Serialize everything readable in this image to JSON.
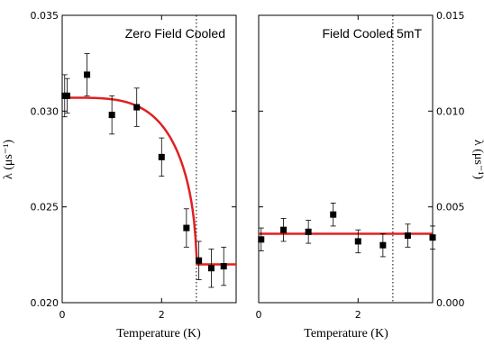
{
  "chart_data": [
    {
      "type": "scatter",
      "title": "Zero Field Cooled",
      "xlabel": "Temperature (K)",
      "ylabel": "λ (μs⁻¹)",
      "xlim": [
        0,
        3.5
      ],
      "ylim": [
        0.02,
        0.035
      ],
      "x_ticks": [
        0,
        2
      ],
      "x_tick_labels": [
        "0",
        "2"
      ],
      "y_ticks": [
        0.02,
        0.025,
        0.03,
        0.035
      ],
      "y_tick_labels": [
        "0.020",
        "0.025",
        "0.030",
        "0.035"
      ],
      "y_tick_side": "left",
      "grid": false,
      "colors": {
        "points": "#000000",
        "fit": "#e02020",
        "reference": "#000000"
      },
      "points": [
        {
          "x": 0.05,
          "y": 0.0308,
          "err": 0.0011
        },
        {
          "x": 0.1,
          "y": 0.0308,
          "err": 0.0009
        },
        {
          "x": 0.5,
          "y": 0.0319,
          "err": 0.0011
        },
        {
          "x": 1.0,
          "y": 0.0298,
          "err": 0.001
        },
        {
          "x": 1.5,
          "y": 0.0302,
          "err": 0.001
        },
        {
          "x": 2.0,
          "y": 0.0276,
          "err": 0.001
        },
        {
          "x": 2.5,
          "y": 0.0239,
          "err": 0.001
        },
        {
          "x": 2.75,
          "y": 0.0222,
          "err": 0.001
        },
        {
          "x": 3.0,
          "y": 0.0218,
          "err": 0.001
        },
        {
          "x": 3.25,
          "y": 0.0219,
          "err": 0.001
        }
      ],
      "fit": {
        "Tc": 2.7,
        "y0": 0.0307,
        "y_base": 0.022
      },
      "reference_line_x": 2.7
    },
    {
      "type": "scatter",
      "title": "Field Cooled 5mT",
      "xlabel": "Temperature (K)",
      "ylabel": "λ (μs⁻¹)",
      "xlim": [
        0,
        3.5
      ],
      "ylim": [
        0.0,
        0.015
      ],
      "x_ticks": [
        0,
        2
      ],
      "x_tick_labels": [
        "0",
        "2"
      ],
      "y_ticks": [
        0.0,
        0.005,
        0.01,
        0.015
      ],
      "y_tick_labels": [
        "0.000",
        "0.005",
        "0.010",
        "0.015"
      ],
      "y_tick_side": "right",
      "grid": false,
      "colors": {
        "points": "#000000",
        "fit": "#e02020",
        "reference": "#000000"
      },
      "points": [
        {
          "x": 0.05,
          "y": 0.0033,
          "err": 0.0006
        },
        {
          "x": 0.5,
          "y": 0.0038,
          "err": 0.0006
        },
        {
          "x": 1.0,
          "y": 0.0037,
          "err": 0.0006
        },
        {
          "x": 1.5,
          "y": 0.0046,
          "err": 0.0006
        },
        {
          "x": 2.0,
          "y": 0.0032,
          "err": 0.0006
        },
        {
          "x": 2.5,
          "y": 0.003,
          "err": 0.0006
        },
        {
          "x": 3.0,
          "y": 0.0035,
          "err": 0.0006
        },
        {
          "x": 3.5,
          "y": 0.0034,
          "err": 0.0006
        }
      ],
      "fit": {
        "constant": 0.0036
      },
      "reference_line_x": 2.7
    }
  ]
}
